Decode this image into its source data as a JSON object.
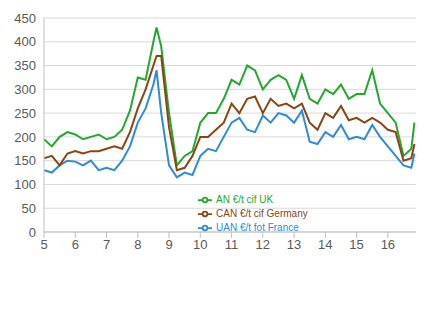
{
  "chart_data": {
    "type": "line",
    "x": [
      5,
      5.25,
      5.5,
      5.75,
      6,
      6.25,
      6.5,
      6.75,
      7,
      7.25,
      7.5,
      7.75,
      8,
      8.25,
      8.5,
      8.6,
      8.75,
      9,
      9.25,
      9.5,
      9.75,
      10,
      10.25,
      10.5,
      10.75,
      11,
      11.25,
      11.5,
      11.75,
      12,
      12.25,
      12.5,
      12.75,
      13,
      13.25,
      13.5,
      13.75,
      14,
      14.25,
      14.5,
      14.75,
      15,
      15.25,
      15.5,
      15.75,
      16,
      16.25,
      16.5,
      16.75,
      16.85
    ],
    "series": [
      {
        "name": "UAN €/t fot France",
        "color": "#2e8bd8",
        "values": [
          130,
          125,
          140,
          150,
          148,
          140,
          150,
          130,
          135,
          130,
          150,
          180,
          230,
          260,
          310,
          340,
          250,
          140,
          115,
          125,
          120,
          160,
          175,
          170,
          200,
          230,
          240,
          215,
          210,
          245,
          230,
          250,
          245,
          230,
          255,
          190,
          185,
          210,
          200,
          225,
          195,
          200,
          195,
          225,
          200,
          180,
          160,
          140,
          135,
          165
        ]
      },
      {
        "name": "AN €/t cif UK",
        "color": "#22a82e",
        "values": [
          195,
          180,
          200,
          210,
          205,
          195,
          200,
          205,
          195,
          200,
          215,
          255,
          325,
          320,
          400,
          430,
          390,
          250,
          140,
          160,
          170,
          230,
          250,
          250,
          280,
          320,
          310,
          350,
          340,
          300,
          320,
          330,
          320,
          280,
          330,
          280,
          270,
          300,
          290,
          310,
          280,
          290,
          290,
          340,
          270,
          250,
          230,
          160,
          175,
          230
        ]
      },
      {
        "name": "CAN €/t cif Germany",
        "color": "#8b4513",
        "values": [
          155,
          160,
          140,
          165,
          170,
          165,
          170,
          170,
          175,
          180,
          175,
          210,
          260,
          300,
          350,
          370,
          370,
          220,
          130,
          135,
          160,
          200,
          200,
          215,
          230,
          270,
          250,
          280,
          285,
          250,
          280,
          265,
          270,
          260,
          270,
          230,
          215,
          250,
          240,
          265,
          235,
          240,
          230,
          240,
          230,
          215,
          210,
          150,
          155,
          185
        ]
      }
    ],
    "xlim": [
      5,
      16.9
    ],
    "xticks": [
      5,
      6,
      7,
      8,
      9,
      10,
      11,
      12,
      13,
      14,
      15,
      16
    ],
    "ylim": [
      0,
      450
    ],
    "yticks": [
      0,
      50,
      100,
      150,
      200,
      250,
      300,
      350,
      400,
      450
    ],
    "grid": true,
    "legend": "bottom"
  }
}
